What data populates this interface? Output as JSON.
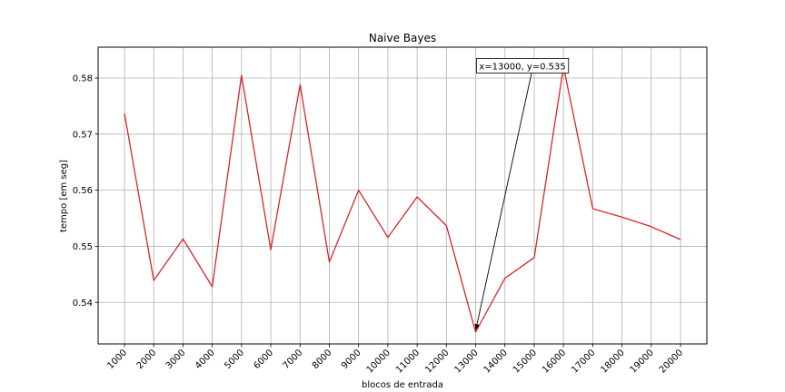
{
  "chart_data": {
    "type": "line",
    "title": "Naive Bayes",
    "xlabel": "blocos de entrada",
    "ylabel": "tempo [em seg]",
    "x": [
      1000,
      2000,
      3000,
      4000,
      5000,
      6000,
      7000,
      8000,
      9000,
      10000,
      11000,
      12000,
      13000,
      14000,
      15000,
      16000,
      17000,
      18000,
      19000,
      20000
    ],
    "x_tick_labels": [
      "1000",
      "2000",
      "3000",
      "4000",
      "5000",
      "6000",
      "7000",
      "8000",
      "9000",
      "10000",
      "11000",
      "12000",
      "13000",
      "14000",
      "15000",
      "16000",
      "17000",
      "18000",
      "19000",
      "20000"
    ],
    "series": [
      {
        "values": [
          0.5737,
          0.5439,
          0.5513,
          0.5428,
          0.5805,
          0.5494,
          0.5788,
          0.5472,
          0.56,
          0.5516,
          0.5588,
          0.5537,
          0.5347,
          0.5443,
          0.548,
          0.582,
          0.5567,
          0.5552,
          0.5535,
          0.5512
        ],
        "color": "#d62728"
      }
    ],
    "y_ticks": [
      0.54,
      0.55,
      0.56,
      0.57,
      0.58
    ],
    "y_tick_labels": [
      "0.54",
      "0.55",
      "0.56",
      "0.57",
      "0.58"
    ],
    "xlim": [
      100,
      20900
    ],
    "ylim": [
      0.5326,
      0.5855
    ],
    "grid": true,
    "x_tick_rotation": 45,
    "annotation": {
      "text": "x=13000, y=0.535",
      "point_x": 13000,
      "point_y": 0.535,
      "text_x": 14600,
      "text_y": 0.5822
    }
  }
}
